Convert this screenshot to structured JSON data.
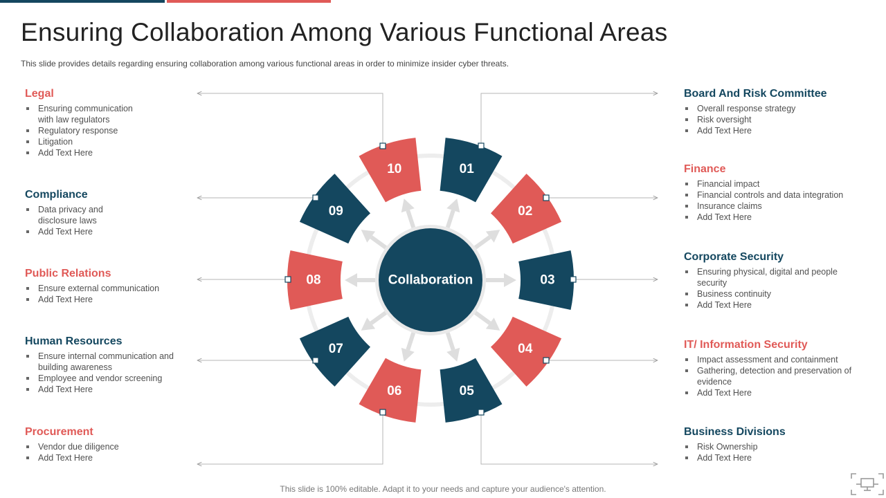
{
  "title": "Ensuring Collaboration Among Various Functional Areas",
  "subtitle": "This slide provides details regarding ensuring collaboration among various functional areas in order to minimize insider cyber threats.",
  "footer": "This slide is 100% editable. Adapt it to your needs and capture your audience's attention.",
  "center_label": "Collaboration",
  "colors": {
    "navy": "#14475f",
    "red": "#e05a57"
  },
  "segments": [
    "01",
    "02",
    "03",
    "04",
    "05",
    "06",
    "07",
    "08",
    "09",
    "10"
  ],
  "left_areas": [
    {
      "title": "Legal",
      "items": [
        "Ensuring communication with law regulators",
        "Regulatory response",
        "Litigation",
        "Add Text Here"
      ]
    },
    {
      "title": "Compliance",
      "items": [
        "Data privacy and disclosure laws",
        "Add Text Here"
      ]
    },
    {
      "title": "Public Relations",
      "items": [
        "Ensure external communication",
        "Add Text Here"
      ]
    },
    {
      "title": "Human Resources",
      "items": [
        "Ensure internal communication and building awareness",
        "Employee and vendor screening",
        "Add Text Here"
      ]
    },
    {
      "title": "Procurement",
      "items": [
        "Vendor due diligence",
        "Add Text Here"
      ]
    }
  ],
  "right_areas": [
    {
      "title": "Board And Risk Committee",
      "items": [
        "Overall response strategy",
        "Risk oversight",
        "Add Text Here"
      ]
    },
    {
      "title": "Finance",
      "items": [
        "Financial impact",
        "Financial controls and data integration",
        "Insurance claims",
        "Add Text Here"
      ]
    },
    {
      "title": "Corporate Security",
      "items": [
        "Ensuring physical, digital and people security",
        "Business continuity",
        "Add Text Here"
      ]
    },
    {
      "title": "IT/ Information Security",
      "items": [
        "Impact assessment and containment",
        "Gathering, detection and preservation of evidence",
        "Add Text Here"
      ]
    },
    {
      "title": "Business Divisions",
      "items": [
        "Risk Ownership",
        "Add Text Here"
      ]
    }
  ]
}
